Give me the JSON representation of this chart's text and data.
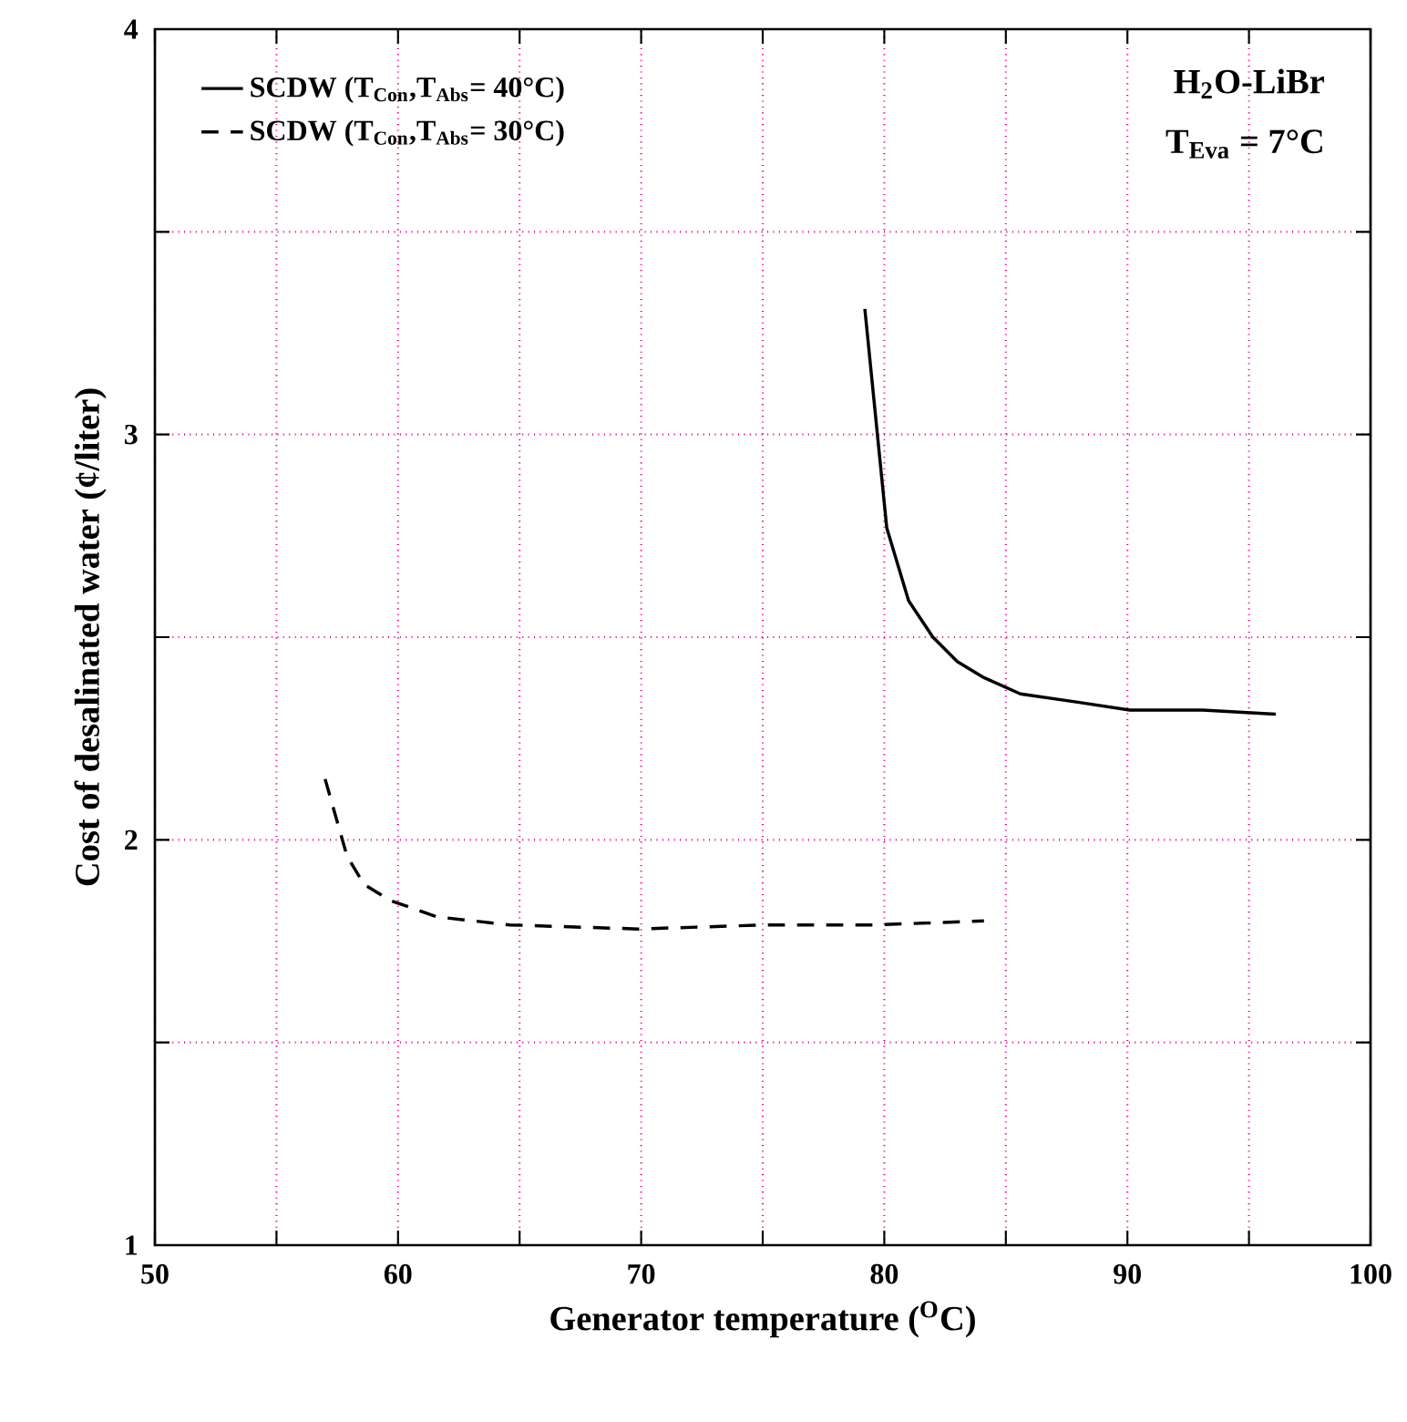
{
  "chart_data": {
    "type": "line",
    "xlabel": "Generator temperature ($^{O}$C)",
    "ylabel": "Cost of desalinated water (¢/liter)",
    "xlim": [
      50,
      100
    ],
    "ylim": [
      1,
      4
    ],
    "xticks": [
      50,
      {
        "value": 55,
        "label": null
      },
      60,
      {
        "value": 65,
        "label": null
      },
      70,
      {
        "value": 75,
        "label": null
      },
      80,
      {
        "value": 85,
        "label": null
      },
      90,
      {
        "value": 95,
        "label": null
      },
      100
    ],
    "yticks": [
      1,
      {
        "value": 1.5,
        "label": null
      },
      2,
      {
        "value": 2.5,
        "label": null
      },
      3,
      {
        "value": 3.5,
        "label": null
      },
      4
    ],
    "grid": true,
    "legend": "top left",
    "marker": "none",
    "annotations": [
      "H$_{2}$O-LiBr",
      "T$_{Eva}$ = 7°C"
    ],
    "series": [
      {
        "name": "SCDW (T$_{Con}$,T$_{Abs}$= 40°C)",
        "color": "#000000",
        "line_style": "solid",
        "x": [
          79.2,
          80.1,
          81.0,
          82.0,
          83.0,
          84.1,
          85.6,
          87.9,
          90.1,
          93.1,
          96.1
        ],
        "values": [
          3.31,
          2.77,
          2.59,
          2.5,
          2.44,
          2.4,
          2.36,
          2.34,
          2.32,
          2.32,
          2.31
        ]
      },
      {
        "name": "SCDW (T$_{Con}$,T$_{Abs}$= 30°C)",
        "color": "#000000",
        "line_style": "dashed",
        "x": [
          57.0,
          57.9,
          58.6,
          59.7,
          61.6,
          64.6,
          69.9,
          75.1,
          79.6,
          84.1
        ],
        "values": [
          2.15,
          1.96,
          1.89,
          1.85,
          1.81,
          1.79,
          1.78,
          1.79,
          1.79,
          1.8
        ]
      }
    ]
  }
}
